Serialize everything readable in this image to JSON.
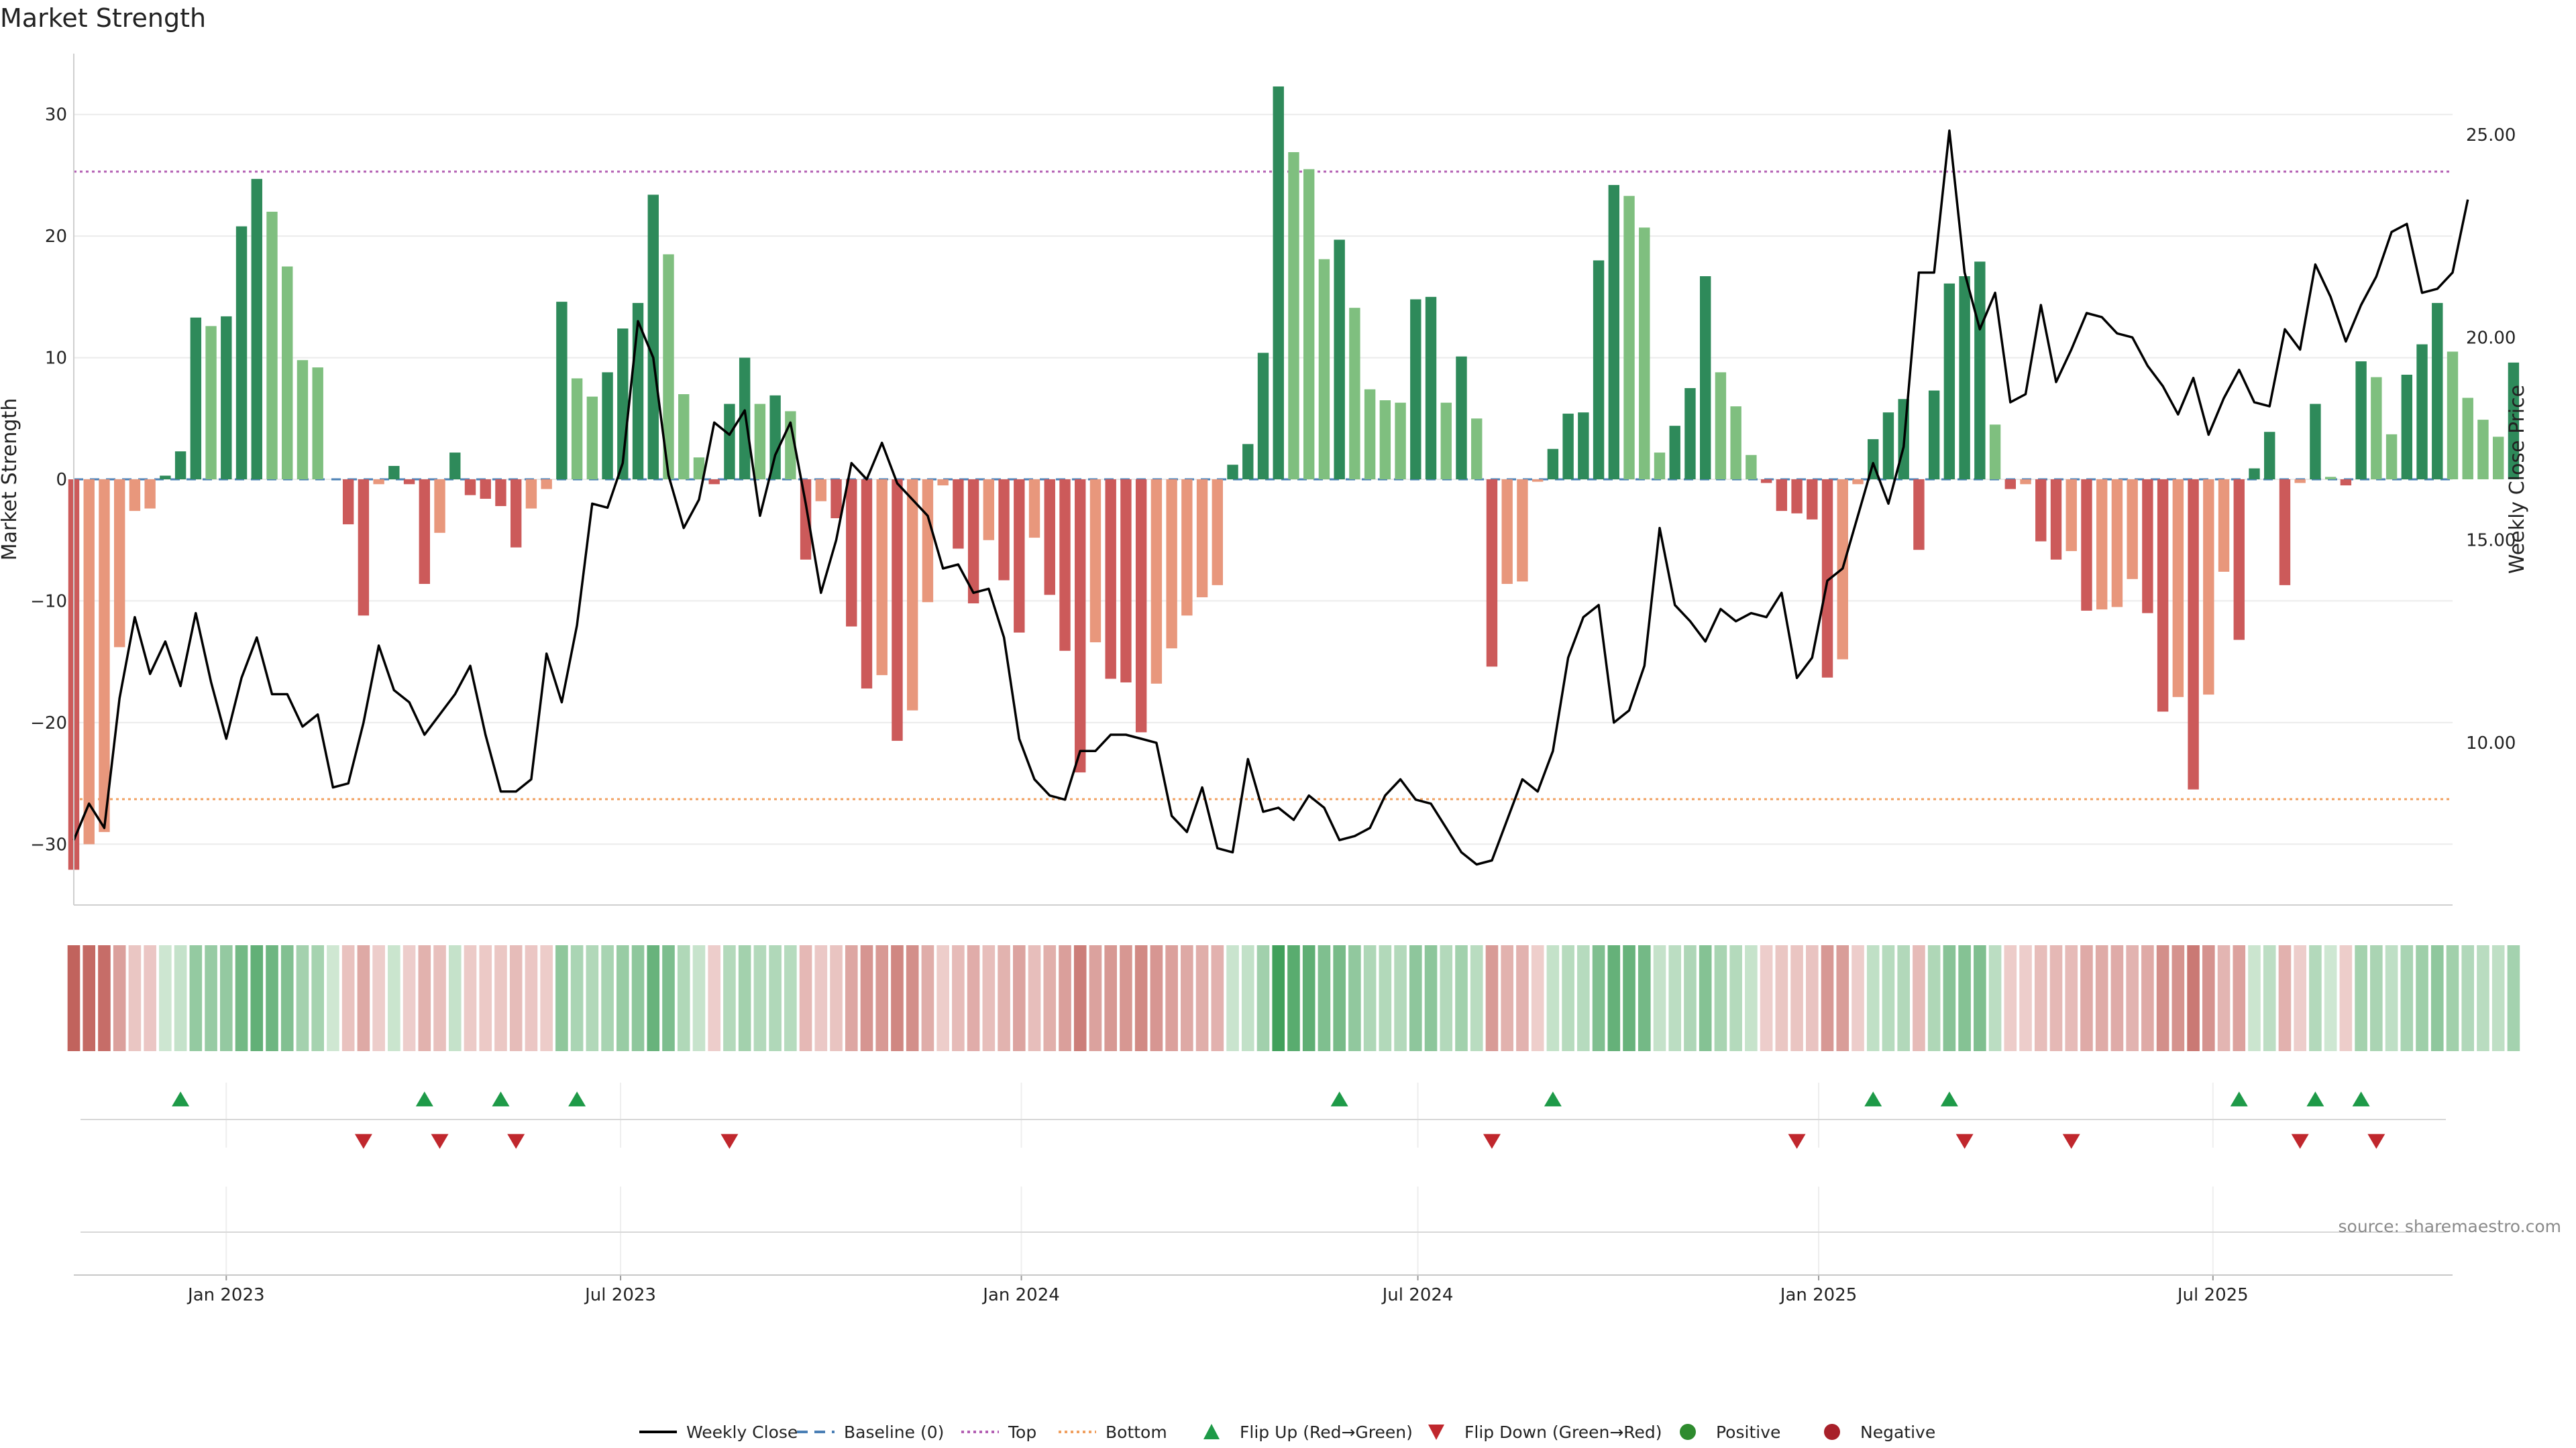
{
  "chart_data": {
    "type": "bar",
    "title": "Market Strength",
    "source_label": "source: sharemaestro.com",
    "ylabel": "Market Strength",
    "y2label": "Weekly Close Price",
    "ylim": [
      -35,
      35
    ],
    "y2lim": [
      6.0,
      27.0
    ],
    "yticks": [
      30,
      20,
      10,
      0,
      -10,
      -20,
      -30
    ],
    "ytick_labels": [
      "30",
      "20",
      "10",
      "0",
      "−10",
      "−20",
      "−30"
    ],
    "y2ticks": [
      25,
      20,
      15,
      10
    ],
    "y2tick_labels": [
      "25.00",
      "20.00",
      "15.00",
      "10.00"
    ],
    "xticks": [
      {
        "date": "2023-01-01",
        "label": "Jan 2023"
      },
      {
        "date": "2023-07-01",
        "label": "Jul 2023"
      },
      {
        "date": "2024-01-01",
        "label": "Jan 2024"
      },
      {
        "date": "2024-07-01",
        "label": "Jul 2024"
      },
      {
        "date": "2025-01-01",
        "label": "Jan 2025"
      },
      {
        "date": "2025-07-01",
        "label": "Jul 2025"
      }
    ],
    "x_start": "2022-10-23",
    "x_end": "2025-10-19",
    "top_level": 25.3,
    "bottom_level": -26.3,
    "strength": [
      -32.1,
      -30,
      -29,
      -13.8,
      -2.6,
      -2.4,
      0.3,
      2.3,
      13.3,
      12.6,
      13.4,
      20.8,
      24.7,
      22,
      17.5,
      9.8,
      9.2,
      0,
      -3.7,
      -11.2,
      -0.4,
      1.1,
      -0.4,
      -8.6,
      -4.4,
      2.2,
      -1.3,
      -1.6,
      -2.2,
      -5.6,
      -2.4,
      -0.8,
      14.6,
      8.3,
      6.8,
      8.8,
      12.4,
      14.5,
      23.4,
      18.5,
      7,
      1.8,
      -0.4,
      6.2,
      10,
      6.2,
      6.9,
      5.6,
      -6.6,
      -1.8,
      -3.2,
      -12.1,
      -17.2,
      -16.1,
      -21.5,
      -19,
      -10.1,
      -0.5,
      -5.7,
      -10.2,
      -5,
      -8.3,
      -12.6,
      -4.8,
      -9.5,
      -14.1,
      -24.1,
      -13.4,
      -16.4,
      -16.7,
      -20.8,
      -16.8,
      -13.9,
      -11.2,
      -9.7,
      -8.7,
      1.2,
      2.9,
      10.4,
      32.3,
      26.9,
      25.5,
      18.1,
      19.7,
      14.1,
      7.4,
      6.5,
      6.3,
      14.8,
      15,
      6.3,
      10.1,
      5,
      -15.4,
      -8.6,
      -8.4,
      -0.2,
      2.5,
      5.4,
      5.5,
      18,
      24.2,
      23.3,
      20.7,
      2.2,
      4.4,
      7.5,
      16.7,
      8.8,
      6,
      2,
      -0.3,
      -2.6,
      -2.8,
      -3.3,
      -16.3,
      -14.8,
      -0.4,
      3.3,
      5.5,
      6.6,
      -5.8,
      7.3,
      16.1,
      16.7,
      17.9,
      4.5,
      -0.8,
      -0.4,
      -5.1,
      -6.6,
      -5.9,
      -10.8,
      -10.7,
      -10.5,
      -8.2,
      -11,
      -19.1,
      -17.9,
      -25.5,
      -17.7,
      -7.6,
      -13.2,
      0.9,
      3.9,
      -8.7,
      -0.3,
      6.2,
      0.2,
      -0.5,
      9.7,
      8.4,
      3.7,
      8.6,
      11.1,
      14.5,
      10.5,
      6.7,
      4.9,
      3.5,
      9.6
    ],
    "close": [
      7.6,
      8.5,
      7.9,
      11.1,
      13.1,
      11.7,
      12.5,
      11.4,
      13.2,
      11.5,
      10.1,
      11.6,
      12.6,
      11.2,
      11.2,
      10.4,
      10.7,
      8.9,
      9,
      10.5,
      12.4,
      11.3,
      11,
      10.2,
      10.7,
      11.2,
      11.9,
      10.2,
      8.8,
      8.8,
      9.1,
      12.2,
      11,
      12.9,
      15.9,
      15.8,
      16.9,
      20.4,
      19.5,
      16.6,
      15.3,
      16,
      17.9,
      17.6,
      18.2,
      15.6,
      17.1,
      17.9,
      15.9,
      13.7,
      15,
      16.9,
      16.5,
      17.4,
      16.4,
      16,
      15.6,
      14.3,
      14.4,
      13.7,
      13.8,
      12.6,
      10.1,
      9.1,
      8.7,
      8.6,
      9.8,
      9.8,
      10.2,
      10.2,
      10.1,
      10,
      8.2,
      7.8,
      8.9,
      7.4,
      7.3,
      9.6,
      8.3,
      8.4,
      8.1,
      8.7,
      8.4,
      7.6,
      7.7,
      7.9,
      8.7,
      9.1,
      8.6,
      8.5,
      7.9,
      7.3,
      7,
      7.1,
      8.1,
      9.1,
      8.8,
      9.8,
      12.1,
      13.1,
      13.4,
      10.5,
      10.8,
      11.9,
      15.3,
      13.4,
      13,
      12.5,
      13.3,
      13,
      13.2,
      13.1,
      13.7,
      11.6,
      12.1,
      14,
      14.3,
      15.6,
      16.9,
      15.9,
      17.3,
      21.6,
      21.6,
      25.1,
      21.6,
      20.2,
      21.1,
      18.4,
      18.6,
      20.8,
      18.9,
      19.7,
      20.6,
      20.5,
      20.1,
      20,
      19.3,
      18.8,
      18.1,
      19,
      17.6,
      18.5,
      19.2,
      18.4,
      18.3,
      20.2,
      19.7,
      21.8,
      21,
      19.9,
      20.8,
      21.5,
      22.6,
      22.8,
      21.1,
      21.2,
      21.6,
      23.4
    ],
    "flip_up_dates": [
      "2022-12-11",
      "2023-04-02",
      "2023-05-07",
      "2023-06-11",
      "2024-05-26",
      "2024-09-01",
      "2025-01-26",
      "2025-03-02",
      "2025-07-13",
      "2025-08-17",
      "2025-09-07"
    ],
    "flip_down_dates": [
      "2023-03-05",
      "2023-04-09",
      "2023-05-14",
      "2023-08-20",
      "2024-08-04",
      "2024-12-22",
      "2025-03-09",
      "2025-04-27",
      "2025-08-10",
      "2025-09-14"
    ],
    "legend": [
      {
        "label": "Weekly Close",
        "kind": "line",
        "color": "#000000"
      },
      {
        "label": "Baseline (0)",
        "kind": "dash",
        "color": "#4a7fb5"
      },
      {
        "label": "Top",
        "kind": "dot",
        "color": "#b35fb3"
      },
      {
        "label": "Bottom",
        "kind": "dot",
        "color": "#f0a060"
      },
      {
        "label": "Flip Up (Red→Green)",
        "kind": "tri-up",
        "color": "#1e9a48"
      },
      {
        "label": "Flip Down (Green→Red)",
        "kind": "tri-down",
        "color": "#c0272d"
      },
      {
        "label": "Positive",
        "kind": "circle",
        "color": "#2e8b2e"
      },
      {
        "label": "Negative",
        "kind": "circle",
        "color": "#a8202a"
      }
    ],
    "colors": {
      "pos_strong": "#2e8a5a",
      "pos_weak": "#7fbf7f",
      "neg_strong": "#cc5a5a",
      "neg_weak": "#e8977c",
      "grid": "#ebebeb",
      "axis": "#cfcfcf"
    }
  }
}
